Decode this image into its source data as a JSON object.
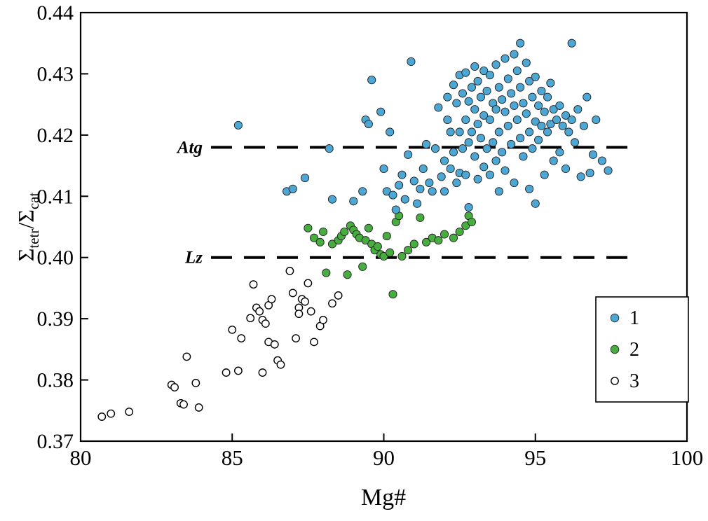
{
  "chart_data": {
    "type": "scatter",
    "title": "",
    "xlabel": "Mg#",
    "ylabel": "Σtetr/Σcat",
    "ylabel_parts": [
      "Σ",
      "tetr",
      "/Σ",
      "cat"
    ],
    "xlim": [
      80,
      100
    ],
    "ylim": [
      0.37,
      0.44
    ],
    "x_ticks": [
      80,
      85,
      90,
      95,
      100
    ],
    "y_ticks": [
      0.37,
      0.38,
      0.39,
      0.4,
      0.41,
      0.42,
      0.43,
      0.44
    ],
    "grid": false,
    "frame": true,
    "reference_lines": [
      {
        "label": "Atg",
        "y": 0.418,
        "x_range": [
          84.3,
          98.3
        ],
        "style": "dashed",
        "color": "#000000"
      },
      {
        "label": "Lz",
        "y": 0.4,
        "x_range": [
          84.3,
          98.3
        ],
        "style": "dashed",
        "color": "#000000"
      }
    ],
    "legend": {
      "position": "lower-right",
      "entries": [
        "1",
        "2",
        "3"
      ]
    },
    "series": [
      {
        "name": "1",
        "marker": "circle-filled",
        "color": "#4da7d4",
        "edge": "#222222",
        "points": [
          [
            85.2,
            0.4216
          ],
          [
            86.8,
            0.4108
          ],
          [
            87.0,
            0.4112
          ],
          [
            87.4,
            0.413
          ],
          [
            88.2,
            0.4178
          ],
          [
            88.3,
            0.4095
          ],
          [
            89.0,
            0.4092
          ],
          [
            89.3,
            0.4108
          ],
          [
            89.4,
            0.4225
          ],
          [
            89.5,
            0.4218
          ],
          [
            89.6,
            0.429
          ],
          [
            89.9,
            0.4238
          ],
          [
            90.0,
            0.4145
          ],
          [
            90.1,
            0.4108
          ],
          [
            90.2,
            0.4205
          ],
          [
            90.3,
            0.4102
          ],
          [
            90.4,
            0.4078
          ],
          [
            90.5,
            0.4118
          ],
          [
            90.6,
            0.4135
          ],
          [
            90.7,
            0.4095
          ],
          [
            90.8,
            0.4168
          ],
          [
            90.9,
            0.432
          ],
          [
            91.0,
            0.4125
          ],
          [
            91.1,
            0.4088
          ],
          [
            91.2,
            0.4112
          ],
          [
            91.3,
            0.4145
          ],
          [
            91.4,
            0.4185
          ],
          [
            91.5,
            0.4122
          ],
          [
            91.6,
            0.4108
          ],
          [
            91.7,
            0.4178
          ],
          [
            91.8,
            0.4245
          ],
          [
            91.9,
            0.4132
          ],
          [
            92.0,
            0.4158
          ],
          [
            92.0,
            0.4108
          ],
          [
            92.1,
            0.4225
          ],
          [
            92.1,
            0.4262
          ],
          [
            92.2,
            0.4205
          ],
          [
            92.2,
            0.4145
          ],
          [
            92.3,
            0.4282
          ],
          [
            92.3,
            0.4172
          ],
          [
            92.4,
            0.4252
          ],
          [
            92.4,
            0.4122
          ],
          [
            92.5,
            0.4298
          ],
          [
            92.5,
            0.4205
          ],
          [
            92.5,
            0.4138
          ],
          [
            92.6,
            0.4268
          ],
          [
            92.6,
            0.4178
          ],
          [
            92.7,
            0.4302
          ],
          [
            92.7,
            0.4225
          ],
          [
            92.7,
            0.4135
          ],
          [
            92.8,
            0.4255
          ],
          [
            92.8,
            0.4188
          ],
          [
            92.8,
            0.4082
          ],
          [
            92.9,
            0.4278
          ],
          [
            92.9,
            0.4205
          ],
          [
            93.0,
            0.4312
          ],
          [
            93.0,
            0.4242
          ],
          [
            93.0,
            0.4165
          ],
          [
            93.1,
            0.4288
          ],
          [
            93.1,
            0.4218
          ],
          [
            93.1,
            0.4128
          ],
          [
            93.2,
            0.4262
          ],
          [
            93.2,
            0.4195
          ],
          [
            93.3,
            0.4305
          ],
          [
            93.3,
            0.4232
          ],
          [
            93.3,
            0.4148
          ],
          [
            93.4,
            0.4272
          ],
          [
            93.4,
            0.4178
          ],
          [
            93.5,
            0.4298
          ],
          [
            93.5,
            0.4225
          ],
          [
            93.5,
            0.4135
          ],
          [
            93.6,
            0.4252
          ],
          [
            93.6,
            0.4188
          ],
          [
            93.7,
            0.4315
          ],
          [
            93.7,
            0.4242
          ],
          [
            93.7,
            0.4158
          ],
          [
            93.8,
            0.4278
          ],
          [
            93.8,
            0.4205
          ],
          [
            93.8,
            0.4108
          ],
          [
            93.9,
            0.4258
          ],
          [
            93.9,
            0.4172
          ],
          [
            94.0,
            0.4325
          ],
          [
            94.0,
            0.4238
          ],
          [
            94.0,
            0.4142
          ],
          [
            94.1,
            0.4292
          ],
          [
            94.1,
            0.4215
          ],
          [
            94.2,
            0.4268
          ],
          [
            94.2,
            0.4185
          ],
          [
            94.3,
            0.4332
          ],
          [
            94.3,
            0.4248
          ],
          [
            94.3,
            0.4122
          ],
          [
            94.4,
            0.4305
          ],
          [
            94.4,
            0.4225
          ],
          [
            94.5,
            0.435
          ],
          [
            94.5,
            0.4278
          ],
          [
            94.5,
            0.4195
          ],
          [
            94.6,
            0.4252
          ],
          [
            94.6,
            0.4165
          ],
          [
            94.7,
            0.4318
          ],
          [
            94.7,
            0.4235
          ],
          [
            94.8,
            0.4288
          ],
          [
            94.8,
            0.4205
          ],
          [
            94.8,
            0.4112
          ],
          [
            94.9,
            0.4262
          ],
          [
            94.9,
            0.4178
          ],
          [
            95.0,
            0.4295
          ],
          [
            95.0,
            0.4222
          ],
          [
            95.0,
            0.4088
          ],
          [
            95.1,
            0.4248
          ],
          [
            95.1,
            0.4192
          ],
          [
            95.2,
            0.4272
          ],
          [
            95.2,
            0.4215
          ],
          [
            95.3,
            0.4238
          ],
          [
            95.3,
            0.4135
          ],
          [
            95.4,
            0.4262
          ],
          [
            95.4,
            0.4205
          ],
          [
            95.5,
            0.4285
          ],
          [
            95.5,
            0.4218
          ],
          [
            95.6,
            0.4242
          ],
          [
            95.6,
            0.4158
          ],
          [
            95.7,
            0.4225
          ],
          [
            95.8,
            0.4248
          ],
          [
            95.8,
            0.4172
          ],
          [
            95.9,
            0.4215
          ],
          [
            96.0,
            0.4232
          ],
          [
            96.0,
            0.4145
          ],
          [
            96.1,
            0.4205
          ],
          [
            96.2,
            0.435
          ],
          [
            96.2,
            0.4225
          ],
          [
            96.3,
            0.4188
          ],
          [
            96.4,
            0.4242
          ],
          [
            96.5,
            0.4132
          ],
          [
            96.6,
            0.4215
          ],
          [
            96.7,
            0.4262
          ],
          [
            96.8,
            0.4138
          ],
          [
            96.9,
            0.4168
          ],
          [
            97.0,
            0.4225
          ],
          [
            97.2,
            0.4158
          ],
          [
            97.4,
            0.4142
          ]
        ]
      },
      {
        "name": "2",
        "marker": "circle-filled",
        "color": "#47ad3f",
        "edge": "#222222",
        "points": [
          [
            87.5,
            0.4048
          ],
          [
            87.7,
            0.4032
          ],
          [
            87.9,
            0.4025
          ],
          [
            88.0,
            0.4042
          ],
          [
            88.1,
            0.3975
          ],
          [
            88.3,
            0.4022
          ],
          [
            88.5,
            0.4028
          ],
          [
            88.6,
            0.4035
          ],
          [
            88.7,
            0.4042
          ],
          [
            88.8,
            0.3972
          ],
          [
            88.9,
            0.4052
          ],
          [
            89.0,
            0.4045
          ],
          [
            89.1,
            0.4038
          ],
          [
            89.2,
            0.4032
          ],
          [
            89.3,
            0.3985
          ],
          [
            89.4,
            0.4028
          ],
          [
            89.5,
            0.4048
          ],
          [
            89.6,
            0.4022
          ],
          [
            89.7,
            0.4012
          ],
          [
            89.8,
            0.4018
          ],
          [
            89.9,
            0.4005
          ],
          [
            90.0,
            0.4002
          ],
          [
            90.1,
            0.4035
          ],
          [
            90.2,
            0.4008
          ],
          [
            90.3,
            0.394
          ],
          [
            90.4,
            0.4058
          ],
          [
            90.5,
            0.4068
          ],
          [
            90.6,
            0.4002
          ],
          [
            90.8,
            0.4012
          ],
          [
            91.0,
            0.4022
          ],
          [
            91.2,
            0.4065
          ],
          [
            91.4,
            0.4025
          ],
          [
            91.6,
            0.4032
          ],
          [
            91.8,
            0.4028
          ],
          [
            92.0,
            0.4038
          ],
          [
            92.3,
            0.4032
          ],
          [
            92.5,
            0.4042
          ],
          [
            92.7,
            0.4052
          ],
          [
            92.8,
            0.4068
          ],
          [
            92.9,
            0.4058
          ]
        ]
      },
      {
        "name": "3",
        "marker": "circle-open",
        "color": "#ffffff",
        "edge": "#000000",
        "points": [
          [
            80.7,
            0.374
          ],
          [
            81.0,
            0.3745
          ],
          [
            81.6,
            0.3748
          ],
          [
            83.0,
            0.3792
          ],
          [
            83.1,
            0.3788
          ],
          [
            83.3,
            0.3762
          ],
          [
            83.4,
            0.376
          ],
          [
            83.5,
            0.3838
          ],
          [
            83.8,
            0.3795
          ],
          [
            83.9,
            0.3755
          ],
          [
            84.8,
            0.3812
          ],
          [
            85.0,
            0.3882
          ],
          [
            85.2,
            0.3815
          ],
          [
            85.3,
            0.3868
          ],
          [
            85.6,
            0.3901
          ],
          [
            85.7,
            0.3956
          ],
          [
            85.8,
            0.3918
          ],
          [
            85.9,
            0.3912
          ],
          [
            86.0,
            0.3898
          ],
          [
            86.0,
            0.3812
          ],
          [
            86.1,
            0.3892
          ],
          [
            86.2,
            0.3862
          ],
          [
            86.2,
            0.3922
          ],
          [
            86.3,
            0.3932
          ],
          [
            86.4,
            0.3858
          ],
          [
            86.5,
            0.3832
          ],
          [
            86.6,
            0.3825
          ],
          [
            86.9,
            0.3978
          ],
          [
            87.0,
            0.3942
          ],
          [
            87.1,
            0.3868
          ],
          [
            87.2,
            0.3918
          ],
          [
            87.2,
            0.3908
          ],
          [
            87.3,
            0.3932
          ],
          [
            87.4,
            0.3928
          ],
          [
            87.5,
            0.3958
          ],
          [
            87.6,
            0.3912
          ],
          [
            87.7,
            0.3862
          ],
          [
            87.9,
            0.3888
          ],
          [
            88.0,
            0.3898
          ],
          [
            88.3,
            0.3925
          ],
          [
            88.5,
            0.3938
          ]
        ]
      }
    ]
  }
}
